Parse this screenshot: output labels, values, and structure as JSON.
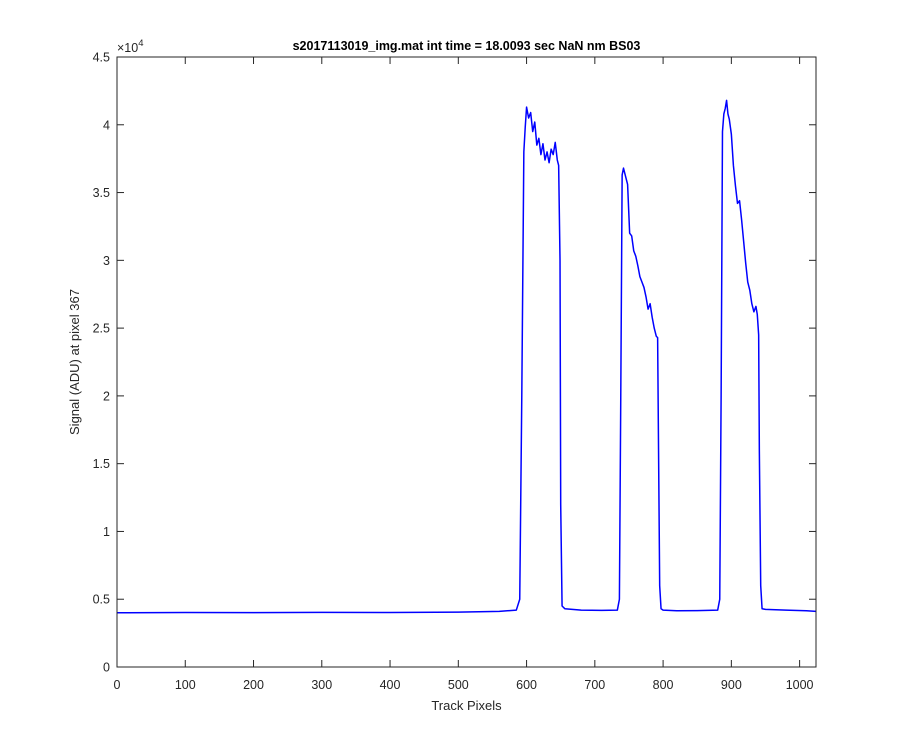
{
  "chart_data": {
    "type": "line",
    "title": "s2017113019_img.mat int time = 18.0093 sec  NaN nm BS03",
    "xlabel": "Track Pixels",
    "ylabel": "Signal (ADU) at pixel 367",
    "xlim": [
      0,
      1024
    ],
    "ylim": [
      0,
      45000
    ],
    "x_ticks": [
      0,
      100,
      200,
      300,
      400,
      500,
      600,
      700,
      800,
      900,
      1000
    ],
    "y_ticks": [
      0,
      5000,
      10000,
      15000,
      20000,
      25000,
      30000,
      35000,
      40000,
      45000
    ],
    "y_tick_labels": [
      "0",
      "0.5",
      "1",
      "1.5",
      "2",
      "2.5",
      "3",
      "3.5",
      "4",
      "4.5"
    ],
    "y_exponent_label": "×10",
    "y_exponent_power": "4",
    "grid": false,
    "line_color": "#0000ff",
    "series": [
      {
        "x": [
          0,
          100,
          200,
          300,
          400,
          500,
          560,
          585,
          590,
          593,
          596,
          598,
          600,
          603,
          606,
          609,
          612,
          615,
          618,
          621,
          624,
          627,
          630,
          633,
          636,
          639,
          642,
          645,
          647,
          649,
          650,
          652,
          656,
          680,
          710,
          733,
          736,
          738,
          740,
          742,
          745,
          748,
          751,
          754,
          757,
          760,
          763,
          766,
          769,
          772,
          775,
          778,
          781,
          784,
          787,
          790,
          792,
          793,
          795,
          797,
          800,
          820,
          850,
          880,
          883,
          885,
          887,
          889,
          891,
          893,
          895,
          897,
          900,
          903,
          906,
          909,
          912,
          915,
          918,
          921,
          924,
          927,
          930,
          933,
          936,
          938,
          940,
          941,
          943,
          945,
          950,
          980,
          1010,
          1024
        ],
        "y": [
          4000,
          4020,
          4010,
          4030,
          4020,
          4050,
          4100,
          4200,
          5000,
          20000,
          38000,
          39800,
          41300,
          40500,
          40900,
          39500,
          40200,
          38500,
          39000,
          37800,
          38600,
          37400,
          38000,
          37200,
          38200,
          37800,
          38700,
          37400,
          37000,
          30000,
          12000,
          4500,
          4300,
          4200,
          4180,
          4200,
          5000,
          20000,
          36300,
          36800,
          36200,
          35600,
          32000,
          31800,
          30700,
          30300,
          29600,
          28800,
          28400,
          28000,
          27300,
          26400,
          26800,
          25800,
          25000,
          24400,
          24300,
          18000,
          6000,
          4300,
          4200,
          4150,
          4160,
          4200,
          5000,
          20000,
          39500,
          40800,
          41200,
          41800,
          40800,
          40400,
          39300,
          37000,
          35500,
          34200,
          34400,
          33000,
          31400,
          29800,
          28400,
          27800,
          26800,
          26200,
          26600,
          26000,
          24500,
          16000,
          6000,
          4300,
          4250,
          4200,
          4150,
          4100
        ]
      }
    ]
  }
}
